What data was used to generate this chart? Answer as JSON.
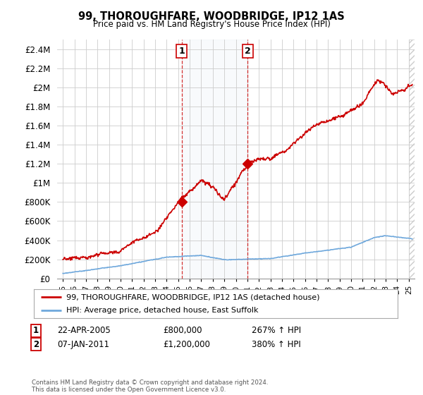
{
  "title": "99, THOROUGHFARE, WOODBRIDGE, IP12 1AS",
  "subtitle": "Price paid vs. HM Land Registry's House Price Index (HPI)",
  "ylim": [
    0,
    2500000
  ],
  "yticks": [
    0,
    200000,
    400000,
    600000,
    800000,
    1000000,
    1200000,
    1400000,
    1600000,
    1800000,
    2000000,
    2200000,
    2400000
  ],
  "ytick_labels": [
    "£0",
    "£200K",
    "£400K",
    "£600K",
    "£800K",
    "£1M",
    "£1.2M",
    "£1.4M",
    "£1.6M",
    "£1.8M",
    "£2M",
    "£2.2M",
    "£2.4M"
  ],
  "xlim_start": 1994.5,
  "xlim_end": 2025.5,
  "xtick_years": [
    1995,
    1996,
    1997,
    1998,
    1999,
    2000,
    2001,
    2002,
    2003,
    2004,
    2005,
    2006,
    2007,
    2008,
    2009,
    2010,
    2011,
    2012,
    2013,
    2014,
    2015,
    2016,
    2017,
    2018,
    2019,
    2020,
    2021,
    2022,
    2023,
    2024,
    2025
  ],
  "hpi_color": "#6fa8dc",
  "price_color": "#cc0000",
  "marker_color": "#cc0000",
  "annotation_bg": "#dce6f1",
  "annotation_border": "#cc0000",
  "vline_color": "#cc0000",
  "sale1_x": 2005.31,
  "sale1_y": 800000,
  "sale1_label": "1",
  "sale1_date": "22-APR-2005",
  "sale1_price": "£800,000",
  "sale1_hpi": "267% ↑ HPI",
  "sale2_x": 2011.02,
  "sale2_y": 1200000,
  "sale2_label": "2",
  "sale2_date": "07-JAN-2011",
  "sale2_price": "£1,200,000",
  "sale2_hpi": "380% ↑ HPI",
  "legend_line1": "99, THOROUGHFARE, WOODBRIDGE, IP12 1AS (detached house)",
  "legend_line2": "HPI: Average price, detached house, East Suffolk",
  "footnote": "Contains HM Land Registry data © Crown copyright and database right 2024.\nThis data is licensed under the Open Government Licence v3.0.",
  "background_color": "#ffffff",
  "plot_bg": "#ffffff",
  "grid_color": "#cccccc"
}
